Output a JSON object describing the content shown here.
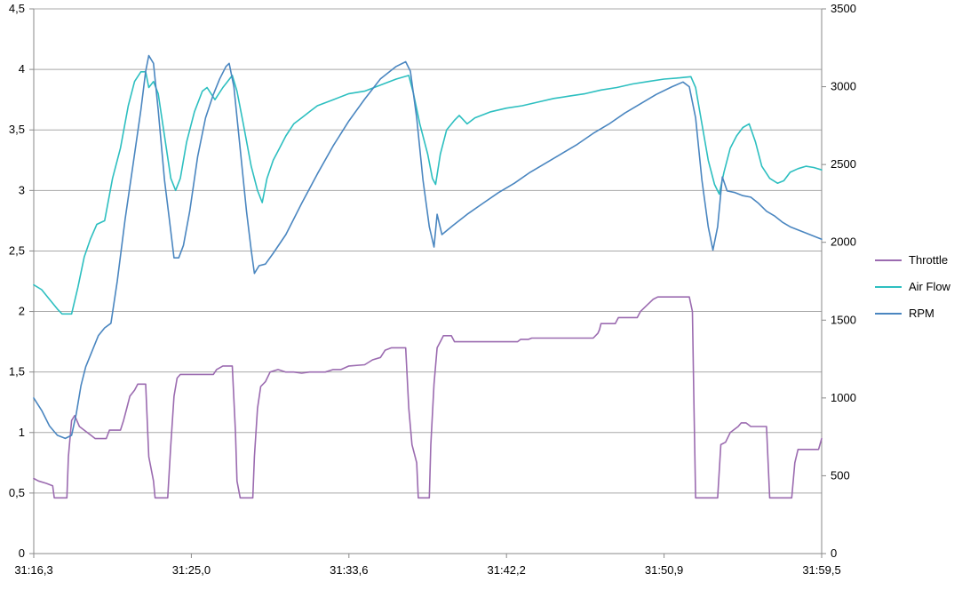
{
  "chart_data": {
    "type": "line",
    "title": "",
    "xlabel": "",
    "ylabel": "",
    "grid": true,
    "legend_position": "right",
    "x_tick_labels": [
      "31:16,3",
      "31:25,0",
      "31:33,6",
      "31:42,2",
      "31:50,9",
      "31:59,5"
    ],
    "x_range": [
      0,
      50
    ],
    "y_left": {
      "range": [
        0,
        4.5
      ],
      "tick_values": [
        0,
        0.5,
        1,
        1.5,
        2,
        2.5,
        3,
        3.5,
        4,
        4.5
      ],
      "tick_labels": [
        "0",
        "0,5",
        "1",
        "1,5",
        "2",
        "2,5",
        "3",
        "3,5",
        "4",
        "4,5"
      ]
    },
    "y_right": {
      "range": [
        0,
        3500
      ],
      "tick_values": [
        0,
        500,
        1000,
        1500,
        2000,
        2500,
        3000,
        3500
      ],
      "tick_labels": [
        "0",
        "500",
        "1000",
        "1500",
        "2000",
        "2500",
        "3000",
        "3500"
      ]
    },
    "series": [
      {
        "name": "Throttle",
        "axis": "left",
        "color": "#9B6BB0",
        "points": [
          [
            0,
            0.62
          ],
          [
            0.3,
            0.6
          ],
          [
            0.8,
            0.58
          ],
          [
            1.2,
            0.56
          ],
          [
            1.3,
            0.46
          ],
          [
            2.1,
            0.46
          ],
          [
            2.2,
            0.8
          ],
          [
            2.4,
            1.1
          ],
          [
            2.6,
            1.14
          ],
          [
            2.9,
            1.05
          ],
          [
            3.2,
            1.02
          ],
          [
            3.6,
            0.98
          ],
          [
            3.9,
            0.95
          ],
          [
            4.6,
            0.95
          ],
          [
            4.8,
            1.02
          ],
          [
            5.5,
            1.02
          ],
          [
            5.7,
            1.1
          ],
          [
            5.9,
            1.2
          ],
          [
            6.1,
            1.3
          ],
          [
            6.4,
            1.35
          ],
          [
            6.6,
            1.4
          ],
          [
            7.1,
            1.4
          ],
          [
            7.3,
            0.8
          ],
          [
            7.6,
            0.6
          ],
          [
            7.7,
            0.46
          ],
          [
            8.5,
            0.46
          ],
          [
            8.7,
            0.9
          ],
          [
            8.9,
            1.3
          ],
          [
            9.1,
            1.45
          ],
          [
            9.3,
            1.48
          ],
          [
            11.4,
            1.48
          ],
          [
            11.6,
            1.52
          ],
          [
            12.0,
            1.55
          ],
          [
            12.6,
            1.55
          ],
          [
            12.8,
            1.0
          ],
          [
            12.9,
            0.6
          ],
          [
            13.1,
            0.46
          ],
          [
            13.9,
            0.46
          ],
          [
            14.0,
            0.8
          ],
          [
            14.2,
            1.2
          ],
          [
            14.4,
            1.38
          ],
          [
            14.7,
            1.42
          ],
          [
            15.0,
            1.5
          ],
          [
            15.5,
            1.52
          ],
          [
            16.0,
            1.5
          ],
          [
            16.5,
            1.5
          ],
          [
            17.0,
            1.49
          ],
          [
            17.5,
            1.5
          ],
          [
            18.0,
            1.5
          ],
          [
            18.5,
            1.5
          ],
          [
            19.0,
            1.52
          ],
          [
            19.5,
            1.52
          ],
          [
            20.0,
            1.55
          ],
          [
            21.0,
            1.56
          ],
          [
            21.5,
            1.6
          ],
          [
            22.0,
            1.62
          ],
          [
            22.3,
            1.68
          ],
          [
            22.7,
            1.7
          ],
          [
            23.6,
            1.7
          ],
          [
            23.8,
            1.2
          ],
          [
            24.0,
            0.9
          ],
          [
            24.3,
            0.75
          ],
          [
            24.4,
            0.46
          ],
          [
            25.1,
            0.46
          ],
          [
            25.2,
            0.9
          ],
          [
            25.4,
            1.4
          ],
          [
            25.6,
            1.7
          ],
          [
            25.8,
            1.75
          ],
          [
            26.0,
            1.8
          ],
          [
            26.5,
            1.8
          ],
          [
            26.7,
            1.75
          ],
          [
            30.7,
            1.75
          ],
          [
            30.9,
            1.77
          ],
          [
            31.4,
            1.77
          ],
          [
            31.6,
            1.78
          ],
          [
            35.5,
            1.78
          ],
          [
            35.8,
            1.82
          ],
          [
            35.9,
            1.85
          ],
          [
            36.0,
            1.9
          ],
          [
            36.9,
            1.9
          ],
          [
            37.1,
            1.95
          ],
          [
            38.3,
            1.95
          ],
          [
            38.5,
            2.0
          ],
          [
            38.9,
            2.05
          ],
          [
            39.3,
            2.1
          ],
          [
            39.6,
            2.12
          ],
          [
            41.6,
            2.12
          ],
          [
            41.8,
            2.0
          ],
          [
            41.9,
            1.2
          ],
          [
            42.0,
            0.46
          ],
          [
            43.4,
            0.46
          ],
          [
            43.6,
            0.9
          ],
          [
            43.9,
            0.92
          ],
          [
            44.2,
            1.0
          ],
          [
            44.7,
            1.05
          ],
          [
            44.9,
            1.08
          ],
          [
            45.2,
            1.08
          ],
          [
            45.5,
            1.05
          ],
          [
            46.5,
            1.05
          ],
          [
            46.7,
            0.46
          ],
          [
            48.1,
            0.46
          ],
          [
            48.3,
            0.75
          ],
          [
            48.5,
            0.86
          ],
          [
            49.8,
            0.86
          ],
          [
            50,
            0.95
          ]
        ]
      },
      {
        "name": "Air Flow",
        "axis": "left",
        "color": "#2DBFC0",
        "points": [
          [
            0,
            2.22
          ],
          [
            0.5,
            2.18
          ],
          [
            1.0,
            2.1
          ],
          [
            1.5,
            2.02
          ],
          [
            1.8,
            1.98
          ],
          [
            2.4,
            1.98
          ],
          [
            2.8,
            2.2
          ],
          [
            3.2,
            2.45
          ],
          [
            3.6,
            2.6
          ],
          [
            4.0,
            2.72
          ],
          [
            4.5,
            2.75
          ],
          [
            5.0,
            3.1
          ],
          [
            5.5,
            3.35
          ],
          [
            6.0,
            3.7
          ],
          [
            6.4,
            3.9
          ],
          [
            6.8,
            3.98
          ],
          [
            7.1,
            3.98
          ],
          [
            7.3,
            3.85
          ],
          [
            7.6,
            3.9
          ],
          [
            7.9,
            3.8
          ],
          [
            8.3,
            3.45
          ],
          [
            8.7,
            3.1
          ],
          [
            9.0,
            3.0
          ],
          [
            9.3,
            3.1
          ],
          [
            9.7,
            3.4
          ],
          [
            10.2,
            3.65
          ],
          [
            10.7,
            3.82
          ],
          [
            11.0,
            3.85
          ],
          [
            11.5,
            3.75
          ],
          [
            12.0,
            3.85
          ],
          [
            12.6,
            3.95
          ],
          [
            12.9,
            3.82
          ],
          [
            13.3,
            3.55
          ],
          [
            13.8,
            3.2
          ],
          [
            14.2,
            3.0
          ],
          [
            14.5,
            2.9
          ],
          [
            14.8,
            3.1
          ],
          [
            15.2,
            3.25
          ],
          [
            15.6,
            3.35
          ],
          [
            16.0,
            3.45
          ],
          [
            16.5,
            3.55
          ],
          [
            17.0,
            3.6
          ],
          [
            17.5,
            3.65
          ],
          [
            18.0,
            3.7
          ],
          [
            19.0,
            3.75
          ],
          [
            20.0,
            3.8
          ],
          [
            21.0,
            3.82
          ],
          [
            22.0,
            3.87
          ],
          [
            23.0,
            3.92
          ],
          [
            23.8,
            3.95
          ],
          [
            24.1,
            3.8
          ],
          [
            24.5,
            3.55
          ],
          [
            25.0,
            3.3
          ],
          [
            25.3,
            3.1
          ],
          [
            25.5,
            3.05
          ],
          [
            25.8,
            3.3
          ],
          [
            26.2,
            3.5
          ],
          [
            26.7,
            3.58
          ],
          [
            27.0,
            3.62
          ],
          [
            27.5,
            3.55
          ],
          [
            28.0,
            3.6
          ],
          [
            29.0,
            3.65
          ],
          [
            30.0,
            3.68
          ],
          [
            31.0,
            3.7
          ],
          [
            32.0,
            3.73
          ],
          [
            33.0,
            3.76
          ],
          [
            34.0,
            3.78
          ],
          [
            35.0,
            3.8
          ],
          [
            36.0,
            3.83
          ],
          [
            37.0,
            3.85
          ],
          [
            38.0,
            3.88
          ],
          [
            39.0,
            3.9
          ],
          [
            40.0,
            3.92
          ],
          [
            41.0,
            3.93
          ],
          [
            41.7,
            3.94
          ],
          [
            42.0,
            3.85
          ],
          [
            42.4,
            3.55
          ],
          [
            42.8,
            3.25
          ],
          [
            43.2,
            3.05
          ],
          [
            43.5,
            2.97
          ],
          [
            43.8,
            3.15
          ],
          [
            44.2,
            3.35
          ],
          [
            44.6,
            3.45
          ],
          [
            45.0,
            3.52
          ],
          [
            45.4,
            3.55
          ],
          [
            45.8,
            3.4
          ],
          [
            46.2,
            3.2
          ],
          [
            46.7,
            3.1
          ],
          [
            47.2,
            3.06
          ],
          [
            47.6,
            3.08
          ],
          [
            48.0,
            3.15
          ],
          [
            48.5,
            3.18
          ],
          [
            49.0,
            3.2
          ],
          [
            49.5,
            3.19
          ],
          [
            50,
            3.17
          ]
        ]
      },
      {
        "name": "RPM",
        "axis": "right",
        "color": "#4A86C0",
        "points": [
          [
            0,
            1000
          ],
          [
            0.5,
            920
          ],
          [
            1.0,
            820
          ],
          [
            1.5,
            760
          ],
          [
            2.0,
            740
          ],
          [
            2.4,
            760
          ],
          [
            2.7,
            900
          ],
          [
            3.0,
            1080
          ],
          [
            3.3,
            1200
          ],
          [
            3.7,
            1300
          ],
          [
            4.1,
            1400
          ],
          [
            4.5,
            1450
          ],
          [
            4.9,
            1480
          ],
          [
            5.3,
            1750
          ],
          [
            5.8,
            2150
          ],
          [
            6.3,
            2500
          ],
          [
            6.8,
            2850
          ],
          [
            7.1,
            3100
          ],
          [
            7.3,
            3200
          ],
          [
            7.6,
            3150
          ],
          [
            7.9,
            2850
          ],
          [
            8.3,
            2400
          ],
          [
            8.6,
            2150
          ],
          [
            8.9,
            1900
          ],
          [
            9.2,
            1900
          ],
          [
            9.5,
            1980
          ],
          [
            9.9,
            2200
          ],
          [
            10.4,
            2550
          ],
          [
            10.9,
            2800
          ],
          [
            11.4,
            2950
          ],
          [
            11.8,
            3050
          ],
          [
            12.2,
            3130
          ],
          [
            12.4,
            3150
          ],
          [
            12.7,
            3000
          ],
          [
            13.1,
            2600
          ],
          [
            13.5,
            2200
          ],
          [
            13.8,
            1950
          ],
          [
            14.0,
            1800
          ],
          [
            14.3,
            1850
          ],
          [
            14.7,
            1860
          ],
          [
            15.2,
            1930
          ],
          [
            16.0,
            2050
          ],
          [
            17.0,
            2250
          ],
          [
            18.0,
            2440
          ],
          [
            19.0,
            2620
          ],
          [
            20.0,
            2780
          ],
          [
            21.0,
            2920
          ],
          [
            22.0,
            3050
          ],
          [
            23.0,
            3130
          ],
          [
            23.6,
            3160
          ],
          [
            23.9,
            3100
          ],
          [
            24.3,
            2800
          ],
          [
            24.7,
            2400
          ],
          [
            25.1,
            2100
          ],
          [
            25.4,
            1970
          ],
          [
            25.6,
            2180
          ],
          [
            25.9,
            2050
          ],
          [
            26.5,
            2100
          ],
          [
            27.5,
            2180
          ],
          [
            28.5,
            2250
          ],
          [
            29.5,
            2320
          ],
          [
            30.5,
            2380
          ],
          [
            31.5,
            2450
          ],
          [
            32.5,
            2510
          ],
          [
            33.5,
            2570
          ],
          [
            34.5,
            2630
          ],
          [
            35.5,
            2700
          ],
          [
            36.5,
            2760
          ],
          [
            37.5,
            2830
          ],
          [
            38.5,
            2890
          ],
          [
            39.5,
            2950
          ],
          [
            40.5,
            3000
          ],
          [
            41.2,
            3030
          ],
          [
            41.6,
            3000
          ],
          [
            42.0,
            2800
          ],
          [
            42.4,
            2400
          ],
          [
            42.8,
            2100
          ],
          [
            43.1,
            1950
          ],
          [
            43.4,
            2100
          ],
          [
            43.7,
            2420
          ],
          [
            44.0,
            2330
          ],
          [
            44.5,
            2320
          ],
          [
            45.0,
            2300
          ],
          [
            45.5,
            2290
          ],
          [
            46.0,
            2250
          ],
          [
            46.5,
            2200
          ],
          [
            47.0,
            2170
          ],
          [
            47.5,
            2130
          ],
          [
            48.0,
            2100
          ],
          [
            48.5,
            2080
          ],
          [
            49.0,
            2060
          ],
          [
            49.5,
            2040
          ],
          [
            50,
            2020
          ]
        ]
      }
    ]
  }
}
